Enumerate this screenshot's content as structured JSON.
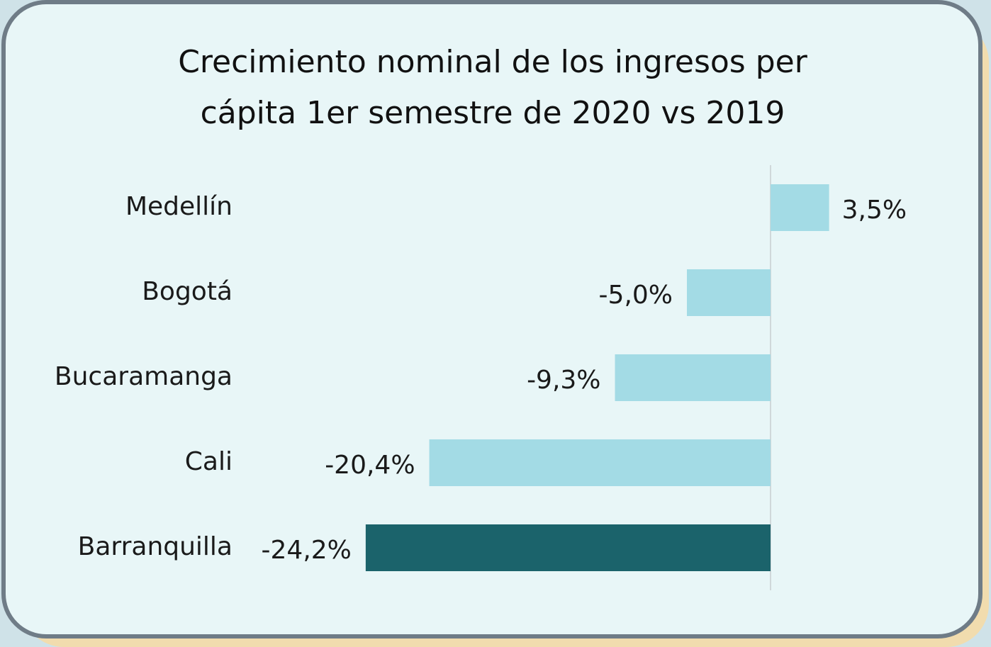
{
  "chart_data": {
    "type": "bar",
    "orientation": "horizontal",
    "title": "Crecimiento nominal de los ingresos per cápita 1er semestre de 2020 vs 2019",
    "categories": [
      "Medellín",
      "Bogotá",
      "Bucaramanga",
      "Cali",
      "Barranquilla"
    ],
    "values": [
      3.5,
      -5.0,
      -9.3,
      -20.4,
      -24.2
    ],
    "value_labels": [
      "3,5%",
      "-5,0%",
      "-9,3%",
      "-20,4%",
      "-24,2%"
    ],
    "colors": [
      "#a3dbe5",
      "#a3dbe5",
      "#a3dbe5",
      "#a3dbe5",
      "#1b636b"
    ],
    "xlim": [
      -25,
      5
    ]
  }
}
